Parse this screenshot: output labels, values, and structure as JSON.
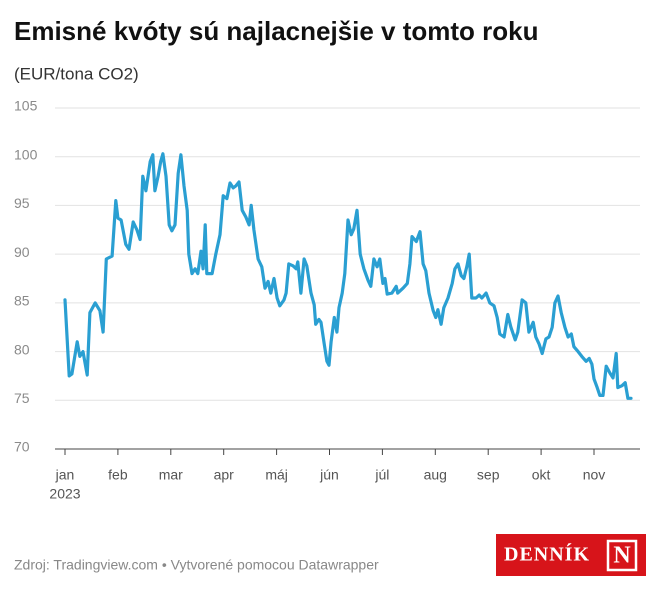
{
  "chart_data": {
    "type": "line",
    "title": "Emisné kvóty sú najlacnejšie v tomto roku",
    "subtitle": "(EUR/tona CO2)",
    "year": "2023",
    "source": "Zdroj: Tradingview.com • Vytvorené pomocou Datawrapper",
    "logo": "DENNÍK",
    "logo_mark": "N",
    "xlim": [
      0,
      10.9
    ],
    "xticks": [
      {
        "value": 0,
        "label": "jan"
      },
      {
        "value": 1,
        "label": "feb"
      },
      {
        "value": 2,
        "label": "mar"
      },
      {
        "value": 3,
        "label": "apr"
      },
      {
        "value": 4,
        "label": "máj"
      },
      {
        "value": 5,
        "label": "jún"
      },
      {
        "value": 6,
        "label": "júl"
      },
      {
        "value": 7,
        "label": "aug"
      },
      {
        "value": 8,
        "label": "sep"
      },
      {
        "value": 9,
        "label": "okt"
      },
      {
        "value": 10,
        "label": "nov"
      }
    ],
    "ylim": [
      70,
      105
    ],
    "yticks": [
      70,
      75,
      80,
      85,
      90,
      95,
      100,
      105
    ],
    "grid": true,
    "color": "#2a9fd2",
    "x": [
      0,
      0.08,
      0.13,
      0.23,
      0.28,
      0.34,
      0.42,
      0.47,
      0.57,
      0.66,
      0.72,
      0.78,
      0.89,
      0.96,
      1.0,
      1.06,
      1.15,
      1.21,
      1.29,
      1.36,
      1.42,
      1.47,
      1.53,
      1.61,
      1.66,
      1.7,
      1.76,
      1.81,
      1.85,
      1.91,
      1.97,
      2.02,
      2.08,
      2.14,
      2.19,
      2.25,
      2.31,
      2.34,
      2.4,
      2.46,
      2.51,
      2.57,
      2.61,
      2.65,
      2.68,
      2.78,
      2.85,
      2.93,
      2.99,
      3.06,
      3.12,
      3.18,
      3.23,
      3.29,
      3.35,
      3.42,
      3.48,
      3.52,
      3.57,
      3.65,
      3.72,
      3.78,
      3.84,
      3.89,
      3.95,
      4.01,
      4.06,
      4.14,
      4.18,
      4.23,
      4.31,
      4.37,
      4.4,
      4.46,
      4.52,
      4.57,
      4.65,
      4.71,
      4.74,
      4.8,
      4.84,
      4.9,
      4.95,
      4.99,
      5.03,
      5.09,
      5.14,
      5.18,
      5.24,
      5.29,
      5.35,
      5.41,
      5.46,
      5.52,
      5.58,
      5.65,
      5.73,
      5.78,
      5.84,
      5.9,
      5.95,
      6.01,
      6.05,
      6.09,
      6.18,
      6.26,
      6.29,
      6.39,
      6.47,
      6.52,
      6.56,
      6.64,
      6.71,
      6.77,
      6.82,
      6.88,
      6.96,
      7.01,
      7.05,
      7.11,
      7.16,
      7.24,
      7.32,
      7.37,
      7.43,
      7.49,
      7.54,
      7.6,
      7.64,
      7.69,
      7.77,
      7.83,
      7.88,
      7.96,
      8.03,
      8.11,
      8.17,
      8.22,
      8.3,
      8.37,
      8.43,
      8.51,
      8.56,
      8.64,
      8.71,
      8.77,
      8.85,
      8.9,
      8.96,
      9.02,
      9.09,
      9.15,
      9.21,
      9.26,
      9.32,
      9.38,
      9.45,
      9.51,
      9.57,
      9.62,
      9.7,
      9.77,
      9.85,
      9.91,
      9.96,
      10.0,
      10.06,
      10.11,
      10.17,
      10.23,
      10.3,
      10.36,
      10.42,
      10.45,
      10.53,
      10.59,
      10.64,
      10.7
    ],
    "values": [
      85.3,
      77.5,
      77.7,
      81,
      79.5,
      80,
      77.6,
      84,
      85,
      84.2,
      82,
      89.5,
      89.8,
      95.5,
      93.7,
      93.5,
      91,
      90.5,
      93.3,
      92.5,
      91.5,
      98,
      96.5,
      99.5,
      100.2,
      96.5,
      98,
      99.5,
      100.3,
      98,
      93,
      92.4,
      93,
      98.3,
      100.2,
      97,
      94.5,
      90,
      88,
      88.5,
      88,
      90.3,
      88.5,
      93,
      88,
      88,
      90,
      92,
      96,
      95.7,
      97.3,
      96.8,
      97,
      97.4,
      94.5,
      93.8,
      93,
      95,
      92.5,
      89.5,
      88.7,
      86.5,
      87.2,
      86,
      87.5,
      85.5,
      84.7,
      85.3,
      86,
      89,
      88.8,
      88.5,
      89.2,
      86,
      89.5,
      88.8,
      86,
      84.8,
      82.8,
      83.3,
      83,
      80.8,
      79,
      78.6,
      81,
      83.5,
      82,
      84.5,
      86,
      88,
      93.5,
      92,
      92.6,
      94.5,
      90,
      88.5,
      87.3,
      86.7,
      89.5,
      88.7,
      89.5,
      87,
      87.5,
      85.9,
      86,
      86.7,
      86,
      86.5,
      87,
      89,
      91.8,
      91.3,
      92.3,
      89,
      88.3,
      86,
      84.2,
      83.5,
      84.3,
      82.8,
      84.5,
      85.5,
      87,
      88.5,
      89,
      87.8,
      87.5,
      88.8,
      90,
      85.5,
      85.5,
      85.8,
      85.5,
      86,
      85,
      84.7,
      83.5,
      81.8,
      81.5,
      83.8,
      82.5,
      81.2,
      82,
      85.3,
      85,
      82,
      83,
      81.5,
      80.8,
      79.8,
      81.3,
      81.5,
      82.5,
      85,
      85.7,
      84,
      82.5,
      81.5,
      81.8,
      80.5,
      80,
      79.5,
      79,
      79.3,
      78.7,
      77.2,
      76.3,
      75.5,
      75.5,
      78.5,
      77.8,
      77.3,
      79.8,
      76.3,
      76.5,
      76.8,
      75.2,
      75.2
    ]
  }
}
